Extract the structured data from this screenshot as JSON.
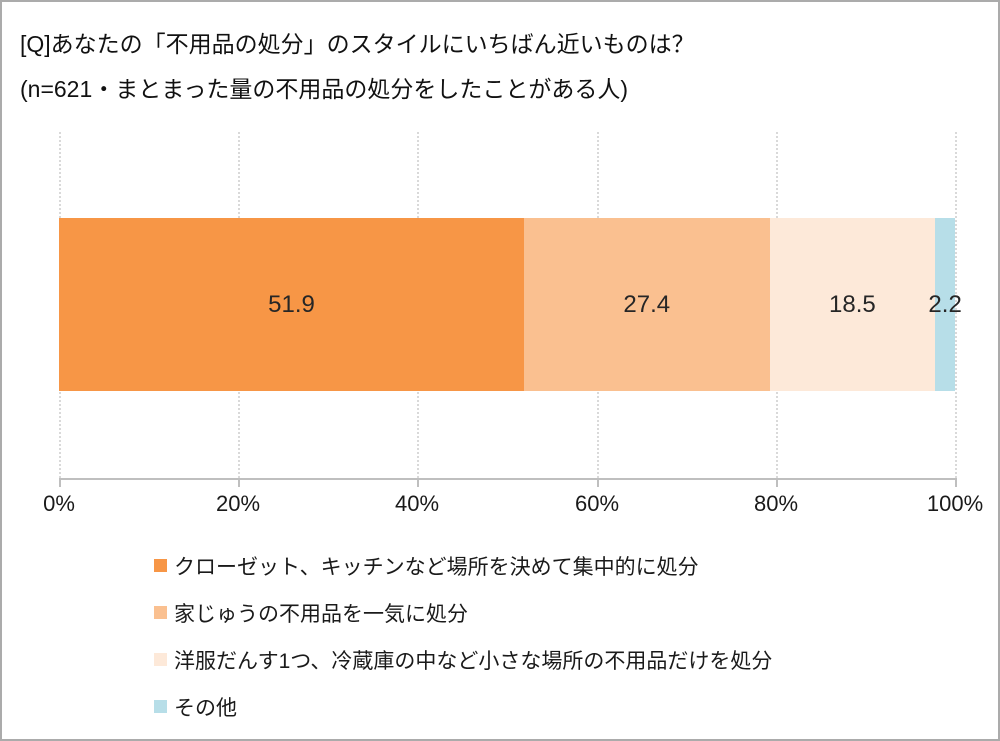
{
  "title_line1": "[Q]あなたの「不用品の処分」のスタイルにいちばん近いものは？",
  "title_line2": "(n=621・まとまった量の不用品の処分をしたことがある人)",
  "chart_data": {
    "type": "bar",
    "subtype": "horizontal-stacked-percentage",
    "title": "[Q]あなたの「不用品の処分」のスタイルにいちばん近いものは？",
    "subtitle": "(n=621・まとまった量の不用品の処分をしたことがある人)",
    "n": 621,
    "series": [
      {
        "name": "クローゼット、キッチンなど場所を決めて集中的に処分",
        "value": 51.9,
        "color": "#F79646"
      },
      {
        "name": "家じゅうの不用品を一気に処分",
        "value": 27.4,
        "color": "#FAC090"
      },
      {
        "name": "洋服だんす1つ、冷蔵庫の中など小さな場所の不用品だけを処分",
        "value": 18.5,
        "color": "#FDE9D9"
      },
      {
        "name": "その他",
        "value": 2.2,
        "color": "#B7DEE8"
      }
    ],
    "xlim": [
      0,
      100
    ],
    "x_ticks": [
      "0%",
      "20%",
      "40%",
      "60%",
      "80%",
      "100%"
    ],
    "grid": "vertical-dotted",
    "gridline_color": "#D9D9D9",
    "axis_color": "#BFBFBF",
    "legend_position": "bottom"
  }
}
